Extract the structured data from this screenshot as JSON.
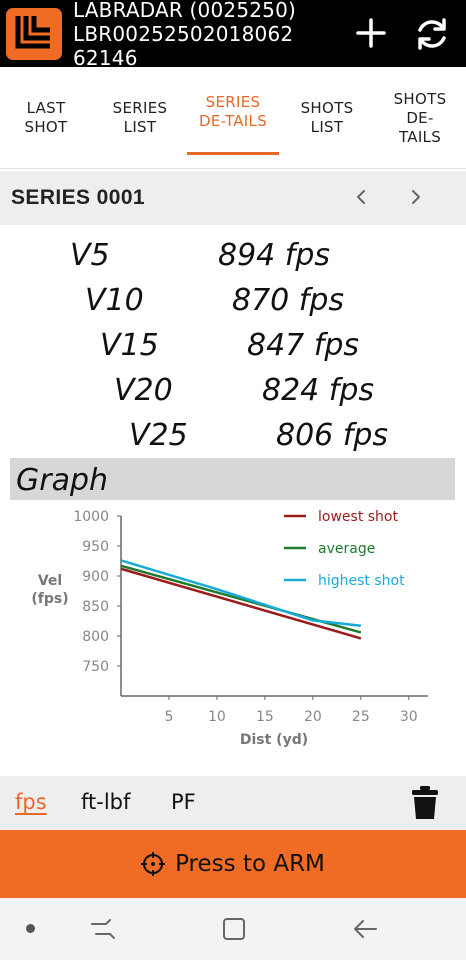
{
  "header": {
    "title_line1": "LABRADAR (0025250)",
    "title_line2": "LBR00252502018062",
    "title_line3": "62146"
  },
  "tabs": [
    {
      "label": "LAST SHOT",
      "active": false
    },
    {
      "label": "SERIES LIST",
      "active": false
    },
    {
      "label": "SERIES DE-TAILS",
      "active": true
    },
    {
      "label": "SHOTS LIST",
      "active": false
    },
    {
      "label": "SHOTS DE-TAILS",
      "active": false
    }
  ],
  "series": {
    "title": "SERIES 0001"
  },
  "velocities": [
    {
      "label": "V5",
      "value": "894 fps"
    },
    {
      "label": "V10",
      "value": "870 fps"
    },
    {
      "label": "V15",
      "value": "847 fps"
    },
    {
      "label": "V20",
      "value": "824 fps"
    },
    {
      "label": "V25",
      "value": "806 fps"
    }
  ],
  "graph": {
    "title": "Graph"
  },
  "chart_data": {
    "type": "line",
    "xlabel": "Dist (yd)",
    "ylabel": "Vel (fps)",
    "xlim": [
      0,
      32
    ],
    "ylim": [
      700,
      1000
    ],
    "xticks": [
      5,
      10,
      15,
      20,
      25,
      30
    ],
    "yticks": [
      750,
      800,
      850,
      900,
      950,
      1000
    ],
    "legend_position": "top-right",
    "series": [
      {
        "name": "lowest shot",
        "color": "#9b1b1b",
        "x": [
          0,
          25
        ],
        "y": [
          912,
          796
        ]
      },
      {
        "name": "average",
        "color": "#1f7a2e",
        "x": [
          0,
          25
        ],
        "y": [
          917,
          806
        ]
      },
      {
        "name": "highest shot",
        "color": "#1aaad8",
        "x": [
          0,
          5,
          10,
          15,
          20,
          25
        ],
        "y": [
          926,
          902,
          878,
          852,
          826,
          817
        ]
      }
    ]
  },
  "units": {
    "fps": "fps",
    "ftlbf": "ft-lbf",
    "pf": "PF",
    "active": "fps"
  },
  "arm": {
    "label": "Press to ARM"
  },
  "colors": {
    "accent": "#f06b23",
    "header_bg": "#000000",
    "bar_bg": "#eeeeee"
  }
}
